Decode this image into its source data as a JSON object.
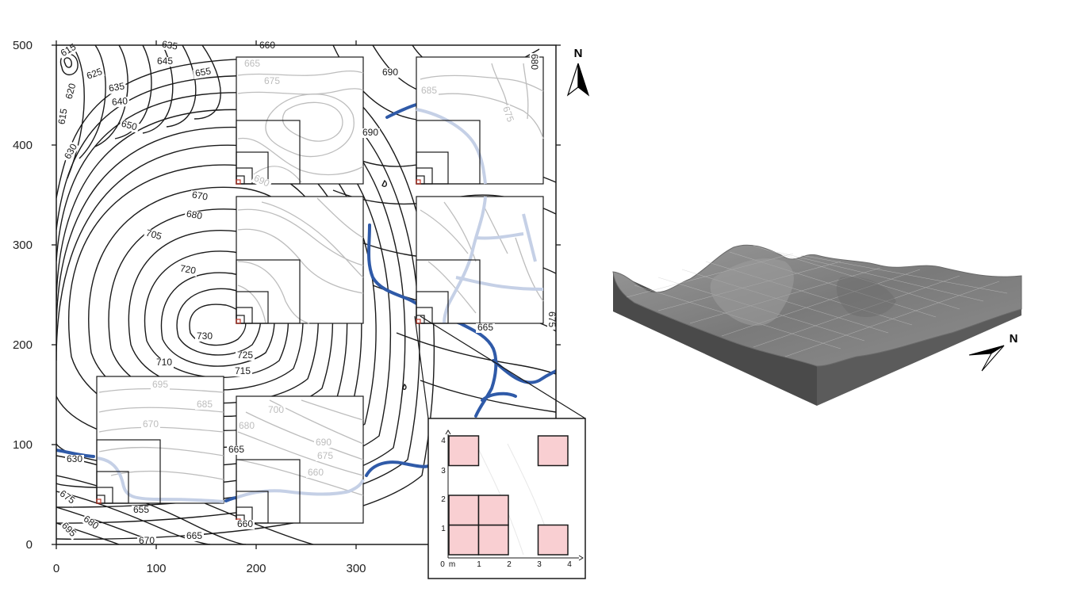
{
  "map": {
    "x_ticks": [
      "0",
      "100",
      "200",
      "300"
    ],
    "y_ticks": [
      "0",
      "100",
      "200",
      "300",
      "400",
      "500"
    ],
    "north_label": "N",
    "contour_labels": [
      {
        "text": "615",
        "tone": "dark"
      },
      {
        "text": "615",
        "tone": "dark"
      },
      {
        "text": "620",
        "tone": "dark"
      },
      {
        "text": "625",
        "tone": "dark"
      },
      {
        "text": "630",
        "tone": "dark"
      },
      {
        "text": "635",
        "tone": "dark"
      },
      {
        "text": "635",
        "tone": "dark"
      },
      {
        "text": "640",
        "tone": "dark"
      },
      {
        "text": "645",
        "tone": "dark"
      },
      {
        "text": "650",
        "tone": "dark"
      },
      {
        "text": "655",
        "tone": "dark"
      },
      {
        "text": "660",
        "tone": "dark"
      },
      {
        "text": "670",
        "tone": "dark"
      },
      {
        "text": "680",
        "tone": "dark"
      },
      {
        "text": "705",
        "tone": "dark"
      },
      {
        "text": "720",
        "tone": "dark"
      },
      {
        "text": "730",
        "tone": "dark"
      },
      {
        "text": "725",
        "tone": "dark"
      },
      {
        "text": "715",
        "tone": "dark"
      },
      {
        "text": "710",
        "tone": "dark"
      },
      {
        "text": "690",
        "tone": "dark"
      },
      {
        "text": "690",
        "tone": "dark"
      },
      {
        "text": "680",
        "tone": "dark"
      },
      {
        "text": "665",
        "tone": "dark"
      },
      {
        "text": "675",
        "tone": "dark"
      },
      {
        "text": "630",
        "tone": "dark"
      },
      {
        "text": "675",
        "tone": "dark"
      },
      {
        "text": "680",
        "tone": "dark"
      },
      {
        "text": "695",
        "tone": "dark"
      },
      {
        "text": "670",
        "tone": "dark"
      },
      {
        "text": "665",
        "tone": "dark"
      },
      {
        "text": "655",
        "tone": "dark"
      },
      {
        "text": "660",
        "tone": "dark"
      },
      {
        "text": "665",
        "tone": "dark"
      },
      {
        "text": "665",
        "tone": "light"
      },
      {
        "text": "675",
        "tone": "light"
      },
      {
        "text": "685",
        "tone": "light"
      },
      {
        "text": "675",
        "tone": "light"
      },
      {
        "text": "690",
        "tone": "light"
      },
      {
        "text": "695",
        "tone": "light"
      },
      {
        "text": "685",
        "tone": "light"
      },
      {
        "text": "670",
        "tone": "light"
      },
      {
        "text": "700",
        "tone": "light"
      },
      {
        "text": "680",
        "tone": "light"
      },
      {
        "text": "690",
        "tone": "light"
      },
      {
        "text": "675",
        "tone": "light"
      },
      {
        "text": "660",
        "tone": "light"
      }
    ],
    "colors": {
      "contour": "#1a1a1a",
      "contour_faded": "#bdbdbd",
      "stream": "#2f5aa8",
      "stream_faded": "#c5d0e6",
      "sample_plot": "#f9cfd2",
      "terrain_top": "#8c8c8c",
      "terrain_side": "#4f4f4f"
    }
  },
  "inset": {
    "x_ticks": [
      "0",
      "m",
      "1",
      "2",
      "3",
      "4"
    ],
    "y_ticks": [
      "1",
      "2",
      "3",
      "4"
    ],
    "cells": [
      [
        0,
        0
      ],
      [
        1,
        0
      ],
      [
        3,
        0
      ],
      [
        0,
        1
      ],
      [
        1,
        1
      ],
      [
        0,
        3
      ],
      [
        3,
        3
      ]
    ]
  },
  "block_diagram": {
    "north_label": "N"
  }
}
